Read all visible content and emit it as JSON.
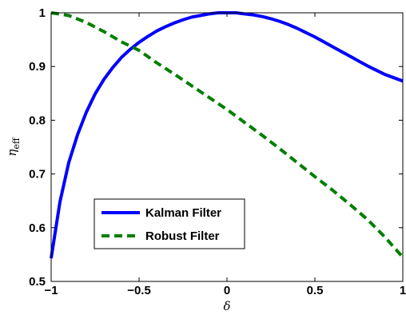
{
  "chart_data": {
    "type": "line",
    "xlabel": "δ",
    "ylabel": "η",
    "ylabel_sub": "eff",
    "xlim": [
      -1,
      1
    ],
    "ylim": [
      0.5,
      1
    ],
    "xticks": [
      -1,
      -0.5,
      0,
      0.5,
      1
    ],
    "yticks": [
      0.5,
      0.6,
      0.7,
      0.8,
      0.9,
      1
    ],
    "xtick_labels": [
      "−1",
      "−0.5",
      "0",
      "0.5",
      "1"
    ],
    "ytick_labels": [
      "0.5",
      "0.6",
      "0.7",
      "0.8",
      "0.9",
      "1"
    ],
    "grid": false,
    "legend_position": "lower-left",
    "series": [
      {
        "name": "Kalman Filter",
        "color": "#0000ff",
        "style": "solid",
        "x": [
          -1,
          -0.95,
          -0.9,
          -0.85,
          -0.8,
          -0.75,
          -0.7,
          -0.65,
          -0.6,
          -0.55,
          -0.5,
          -0.45,
          -0.4,
          -0.35,
          -0.3,
          -0.25,
          -0.2,
          -0.15,
          -0.1,
          -0.05,
          0,
          0.05,
          0.1,
          0.15,
          0.2,
          0.25,
          0.3,
          0.35,
          0.4,
          0.45,
          0.5,
          0.55,
          0.6,
          0.65,
          0.7,
          0.75,
          0.8,
          0.85,
          0.9,
          0.95,
          1
        ],
        "y": [
          0.543,
          0.648,
          0.721,
          0.773,
          0.815,
          0.849,
          0.876,
          0.898,
          0.917,
          0.932,
          0.945,
          0.956,
          0.966,
          0.974,
          0.981,
          0.987,
          0.992,
          0.995,
          0.998,
          1.0,
          1.0,
          1.0,
          0.998,
          0.996,
          0.993,
          0.989,
          0.984,
          0.978,
          0.971,
          0.963,
          0.955,
          0.946,
          0.937,
          0.928,
          0.919,
          0.91,
          0.901,
          0.893,
          0.885,
          0.879,
          0.873
        ]
      },
      {
        "name": "Robust Filter",
        "color": "#007f00",
        "style": "dashed",
        "x": [
          -1,
          -0.9,
          -0.8,
          -0.7,
          -0.6,
          -0.5,
          -0.4,
          -0.3,
          -0.2,
          -0.1,
          0,
          0.1,
          0.2,
          0.3,
          0.4,
          0.5,
          0.6,
          0.7,
          0.8,
          0.9,
          1
        ],
        "y": [
          1.0,
          0.995,
          0.982,
          0.965,
          0.946,
          0.93,
          0.907,
          0.886,
          0.864,
          0.842,
          0.82,
          0.796,
          0.772,
          0.747,
          0.721,
          0.695,
          0.67,
          0.643,
          0.615,
          0.582,
          0.545
        ]
      }
    ]
  }
}
